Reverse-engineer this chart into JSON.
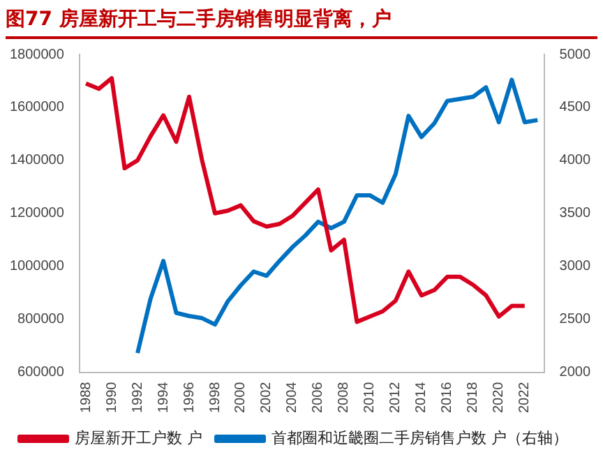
{
  "chart_data": {
    "type": "line",
    "title": "图77  房屋新开工与二手房销售明显背离，户",
    "x": [
      1988,
      1989,
      1990,
      1991,
      1992,
      1993,
      1994,
      1995,
      1996,
      1997,
      1998,
      1999,
      2000,
      2001,
      2002,
      2003,
      2004,
      2005,
      2006,
      2007,
      2008,
      2009,
      2010,
      2011,
      2012,
      2013,
      2014,
      2015,
      2016,
      2017,
      2018,
      2019,
      2020,
      2021,
      2022,
      2023
    ],
    "series": [
      {
        "name": "房屋新开工户数 户",
        "color": "#d7001f",
        "values": [
          1690000,
          1670000,
          1710000,
          1370000,
          1400000,
          1490000,
          1570000,
          1470000,
          1640000,
          1400000,
          1200000,
          1210000,
          1230000,
          1170000,
          1150000,
          1160000,
          1190000,
          1240000,
          1290000,
          1060000,
          1100000,
          790000,
          810000,
          830000,
          870000,
          980000,
          890000,
          910000,
          960000,
          960000,
          930000,
          890000,
          810000,
          850000,
          850000,
          null
        ]
      },
      {
        "name": "首都圈和近畿圈二手房销售户数 户（右轴）",
        "color": "#0070c0",
        "axis": "y2",
        "values": [
          null,
          null,
          null,
          null,
          2180,
          2690,
          3050,
          2560,
          2530,
          2510,
          2450,
          2670,
          2820,
          2950,
          2910,
          3050,
          3180,
          3290,
          3420,
          3360,
          3420,
          3670,
          3670,
          3600,
          3870,
          4420,
          4220,
          4350,
          4560,
          4580,
          4600,
          4690,
          4360,
          4760,
          4360,
          4380
        ]
      }
    ],
    "xlim": [
      1987.5,
      2023.5
    ],
    "xticks": [
      1988,
      1990,
      1992,
      1994,
      1996,
      1998,
      2000,
      2002,
      2004,
      2006,
      2008,
      2010,
      2012,
      2014,
      2016,
      2018,
      2020,
      2022
    ],
    "ylim": [
      600000,
      1800000
    ],
    "yticks": [
      600000,
      800000,
      1000000,
      1200000,
      1400000,
      1600000,
      1800000
    ],
    "y2lim": [
      2000,
      5000
    ],
    "y2ticks": [
      2000,
      2500,
      3000,
      3500,
      4000,
      4500,
      5000
    ],
    "grid": false,
    "legend": "bottom",
    "marker": "none",
    "line_style": "solid"
  }
}
